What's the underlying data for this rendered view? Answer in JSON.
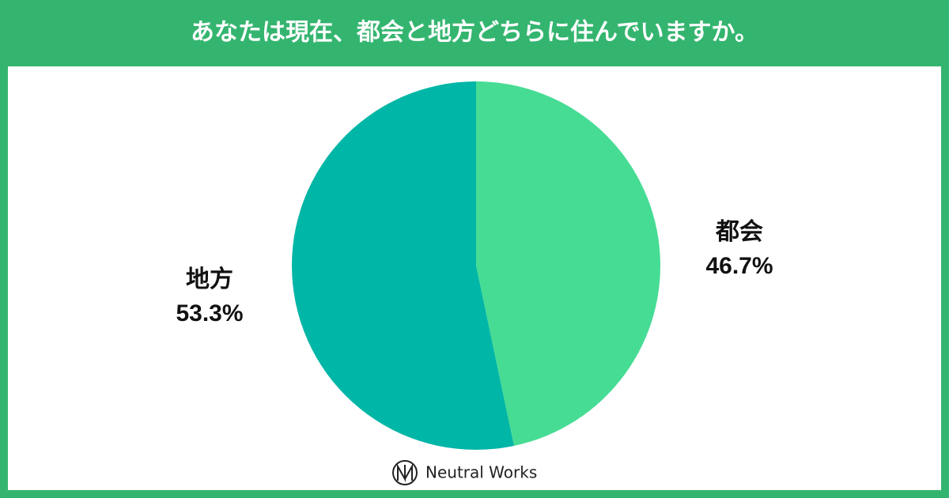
{
  "chart_data": {
    "type": "pie",
    "title": "あなたは現在、都会と地方どちらに住んでいますか。",
    "categories": [
      "都会",
      "地方"
    ],
    "values": [
      46.7,
      53.3
    ],
    "value_labels": [
      "46.7%",
      "53.3%"
    ],
    "colors": [
      "#46dc94",
      "#00b6a6"
    ],
    "start_angle": 90,
    "direction": "clockwise",
    "logo": "Neutral Works"
  }
}
